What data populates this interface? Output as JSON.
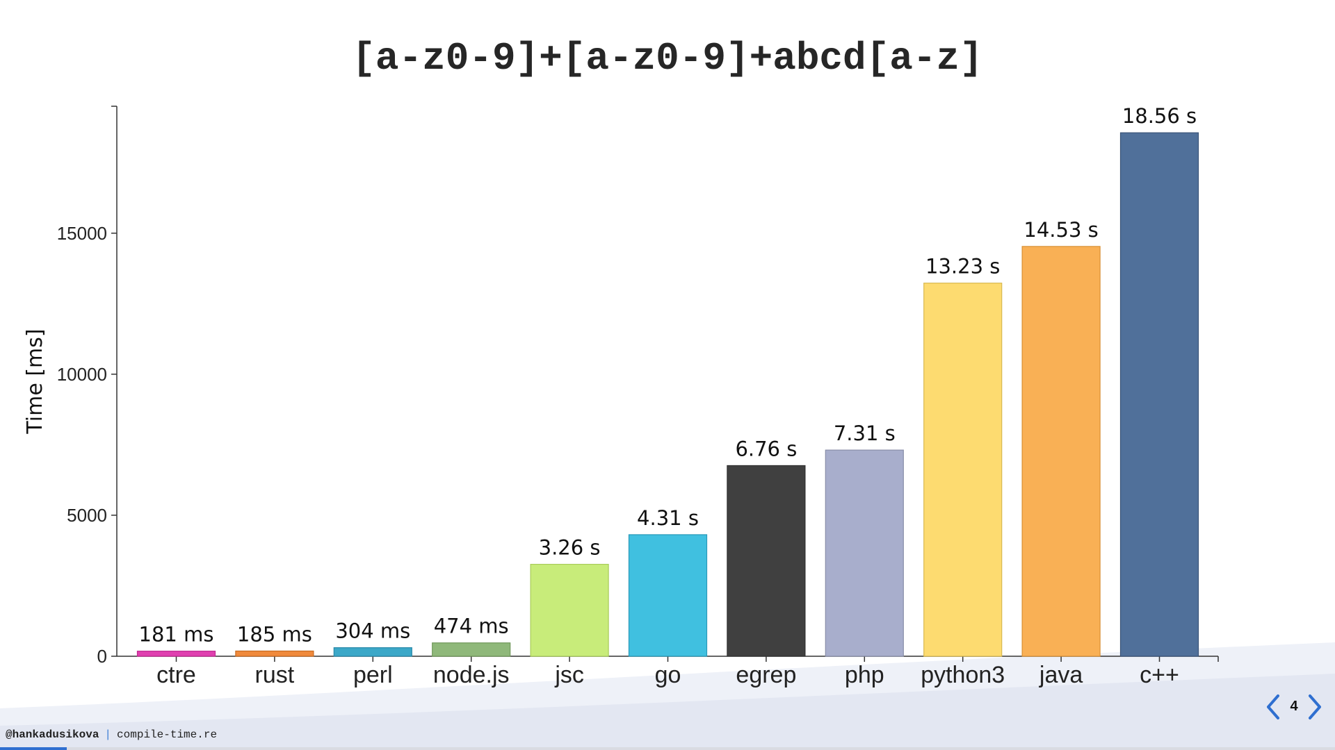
{
  "slide": {
    "title": "[a-z0-9]+[a-z0-9]+abcd[a-z]",
    "page_number": "4",
    "total_pages_progress": 0.05
  },
  "footer": {
    "handle": "@hankadusikova",
    "separator": "|",
    "site": "compile-time.re"
  },
  "nav": {
    "prev_icon": "chevron-left-icon",
    "next_icon": "chevron-right-icon",
    "arrow_color": "#2f6fd0"
  },
  "chart_data": {
    "type": "bar",
    "title": "",
    "xlabel": "",
    "ylabel": "Time [ms]",
    "ylim": [
      0,
      19500
    ],
    "yticks": [
      0,
      5000,
      10000,
      15000
    ],
    "grid": false,
    "categories": [
      "ctre",
      "rust",
      "perl",
      "node.js",
      "jsc",
      "go",
      "egrep",
      "php",
      "python3",
      "java",
      "c++"
    ],
    "values": [
      181,
      185,
      304,
      474,
      3260,
      4310,
      6760,
      7310,
      13230,
      14530,
      18560
    ],
    "data_labels": [
      "181 ms",
      "185 ms",
      "304 ms",
      "474 ms",
      "3.26 s",
      "4.31 s",
      "6.76 s",
      "7.31 s",
      "13.23 s",
      "14.53 s",
      "18.56 s"
    ],
    "colors": [
      "#e040b0",
      "#f08a3c",
      "#3ca8c8",
      "#8fb87a",
      "#c8ec7a",
      "#40c0e0",
      "#404040",
      "#a8aecc",
      "#fddb70",
      "#f9b055",
      "#50709a"
    ],
    "bar_edge_colors": [
      "#c02890",
      "#c86a20",
      "#2888a8",
      "#70985a",
      "#a8cc5a",
      "#2898b8",
      "#303030",
      "#888ea8",
      "#d8b850",
      "#d89035",
      "#3a5478"
    ]
  }
}
